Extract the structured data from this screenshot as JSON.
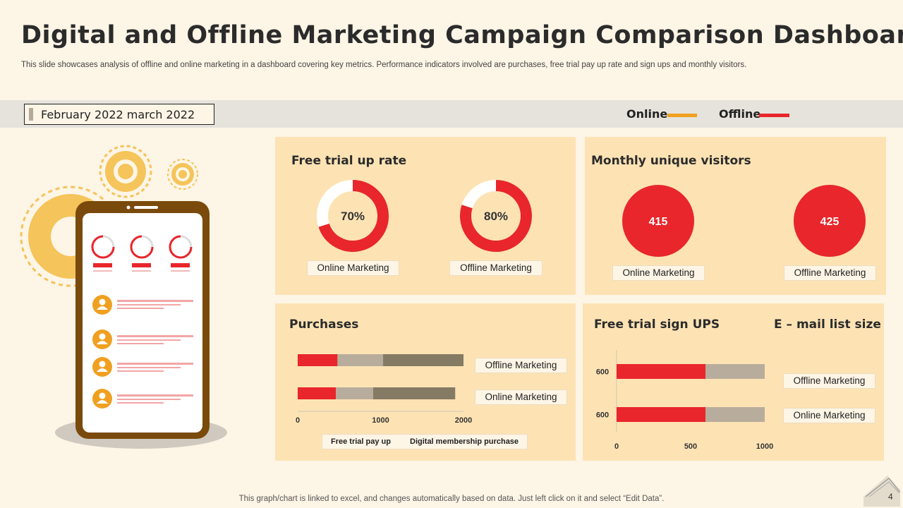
{
  "header": {
    "title": "Digital and Offline Marketing Campaign Comparison Dashboard",
    "subtitle": "This slide showcases analysis of offline and online marketing in a dashboard covering key metrics. Performance indicators involved are purchases, free trial pay up rate and sign ups and monthly visitors."
  },
  "period": "February 2022 march 2022",
  "legend": [
    {
      "label": "Online",
      "color": "#f0a020"
    },
    {
      "label": "Offline",
      "color": "#e8262b"
    }
  ],
  "colors": {
    "red": "#e8262b",
    "panel": "#fde3b4",
    "light_gray": "#b8ad9c",
    "dark_gray": "#857a63",
    "phone_frame": "#7a4a0c",
    "gear": "#f5c45a"
  },
  "free_trial": {
    "title": "Free trial up rate",
    "labels": [
      "Online Marketing",
      "Offline Marketing"
    ]
  },
  "visitors": {
    "title": "Monthly unique visitors",
    "labels": [
      "Online Marketing",
      "Offline Marketing"
    ]
  },
  "purchases": {
    "title": "Purchases"
  },
  "signups": {
    "title": "Free trial sign UPS",
    "email_title": "E – mail list size"
  },
  "chart_data": [
    {
      "type": "pie",
      "title": "Free trial up rate",
      "categories": [
        "Online Marketing",
        "Offline Marketing"
      ],
      "values": [
        70,
        80
      ],
      "value_labels": [
        "70%",
        "80%"
      ]
    },
    {
      "type": "pie",
      "title": "Monthly unique visitors",
      "categories": [
        "Online Marketing",
        "Offline Marketing"
      ],
      "values": [
        415,
        425
      ],
      "value_labels": [
        "415",
        "425"
      ]
    },
    {
      "type": "bar",
      "orientation": "horizontal",
      "stacked": true,
      "title": "Purchases",
      "categories": [
        "Offline Marketing",
        "Online Marketing"
      ],
      "series": [
        {
          "name": "",
          "values": [
            480,
            460
          ]
        },
        {
          "name": "Free trial pay up",
          "values": [
            550,
            450
          ]
        },
        {
          "name": "Digital membership purchase",
          "values": [
            970,
            990
          ]
        }
      ],
      "xlim": [
        0,
        2000
      ],
      "ticks": [
        "0",
        "1000",
        "2000"
      ]
    },
    {
      "type": "bar",
      "orientation": "horizontal",
      "stacked": true,
      "title": "Free trial sign UPS",
      "categories": [
        "Offline Marketing",
        "Online Marketing"
      ],
      "category_labels": [
        "600",
        "600"
      ],
      "series": [
        {
          "name": "Free trial sign UPS",
          "values": [
            600,
            600
          ]
        },
        {
          "name": "E – mail list size",
          "values": [
            400,
            400
          ]
        }
      ],
      "xlim": [
        0,
        1000
      ],
      "ticks": [
        "0",
        "500",
        "1000"
      ]
    }
  ],
  "footer": "This graph/chart is linked to excel,  and changes automatically based on data. Just left click on it and select “Edit Data”.",
  "page_number": "4"
}
